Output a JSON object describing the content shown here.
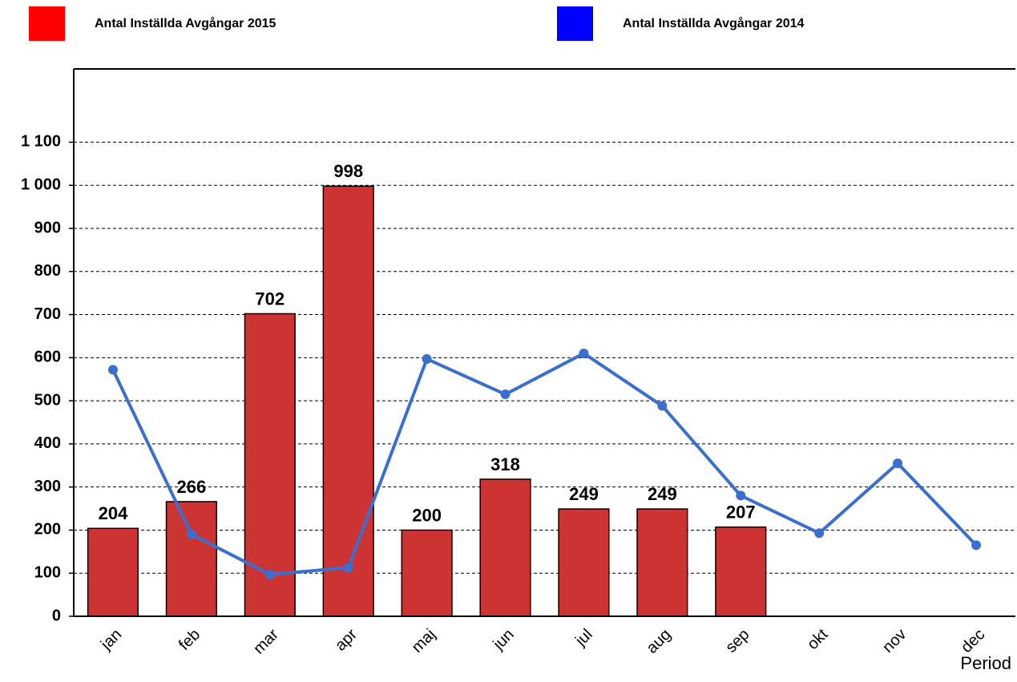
{
  "chart_data": {
    "type": "bar",
    "categories": [
      "jan",
      "feb",
      "mar",
      "apr",
      "maj",
      "jun",
      "jul",
      "aug",
      "sep",
      "okt",
      "nov",
      "dec"
    ],
    "series": [
      {
        "name": "Antal Inställda Avgångar 2015",
        "type": "bar",
        "color": "#cc3333",
        "legend_color": "#ff0000",
        "values": [
          204,
          266,
          702,
          998,
          200,
          318,
          249,
          249,
          207,
          null,
          null,
          null
        ]
      },
      {
        "name": "Antal Inställda Avgångar 2014",
        "type": "line",
        "color": "#3a6fd0",
        "legend_color": "#0000ff",
        "values": [
          572,
          190,
          97,
          113,
          597,
          515,
          610,
          488,
          280,
          193,
          355,
          165
        ]
      }
    ],
    "xlabel": "Period",
    "ylim": [
      0,
      1270
    ],
    "yticks": [
      0,
      100,
      200,
      300,
      400,
      500,
      600,
      700,
      800,
      900,
      {
        "value": 1000,
        "label": "1 000"
      },
      {
        "value": 1100,
        "label": "1 100"
      }
    ],
    "grid": true
  }
}
